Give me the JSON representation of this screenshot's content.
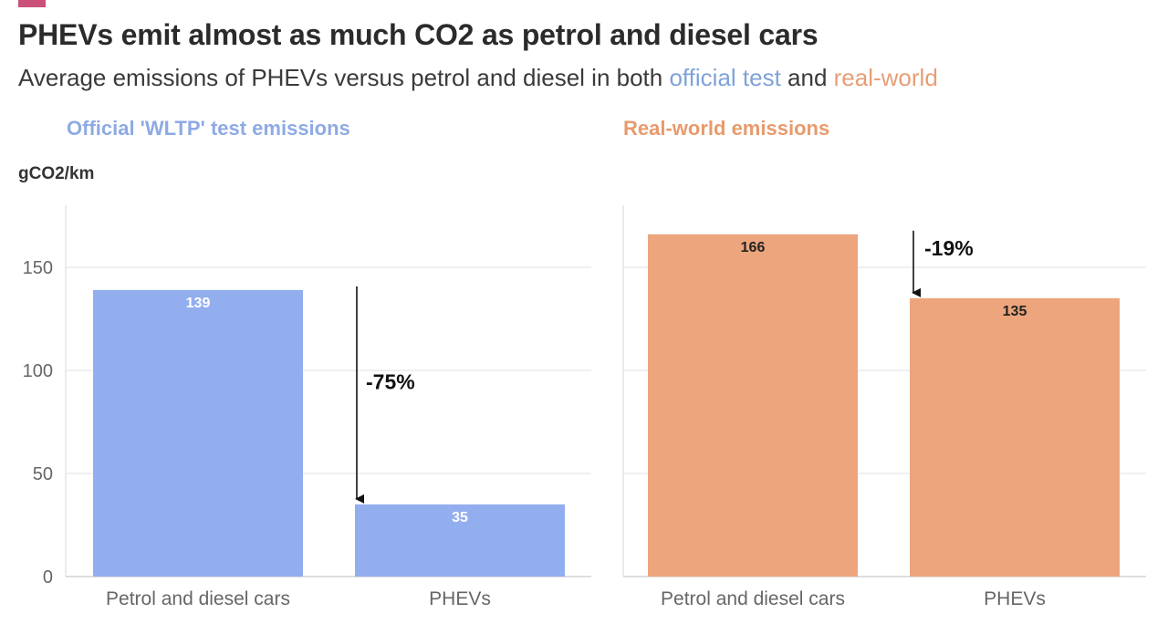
{
  "header": {
    "title": "PHEVs emit almost as much CO2 as petrol and diesel cars",
    "subtitle_prefix": "Average emissions of PHEVs versus petrol and diesel in both ",
    "subtitle_official": "official test",
    "subtitle_and": " and ",
    "subtitle_real": "real-world"
  },
  "unit_label": "gCO2/km",
  "colors": {
    "official": "#92aeee",
    "real_world": "#eda57d",
    "label_official": "#ffffff",
    "label_real_world": "#222222"
  },
  "chart_data": [
    {
      "type": "bar",
      "title": "Official 'WLTP' test emissions",
      "ylabel": "gCO2/km",
      "categories": [
        "Petrol and diesel cars",
        "PHEVs"
      ],
      "values": [
        139,
        35
      ],
      "ylim": [
        0,
        175
      ],
      "yticks": [
        0,
        50,
        100,
        150
      ],
      "grid": true,
      "annotation": {
        "text": "-75%",
        "from": 139,
        "to": 35
      }
    },
    {
      "type": "bar",
      "title": "Real-world emissions",
      "ylabel": "gCO2/km",
      "categories": [
        "Petrol and diesel cars",
        "PHEVs"
      ],
      "values": [
        166,
        135
      ],
      "ylim": [
        0,
        175
      ],
      "yticks": [
        0,
        50,
        100,
        150
      ],
      "grid": true,
      "annotation": {
        "text": "-19%",
        "from": 166,
        "to": 135
      }
    }
  ]
}
